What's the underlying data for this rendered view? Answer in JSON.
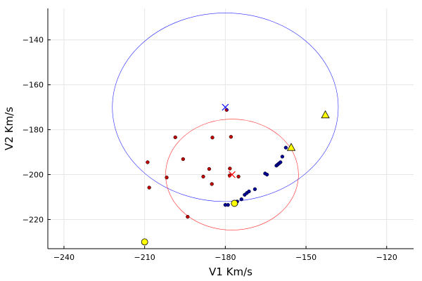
{
  "chart_data": {
    "type": "scatter",
    "xlabel": "V1 Km/s",
    "ylabel": "V2 Km/s",
    "xlim": [
      -246,
      -110
    ],
    "ylim": [
      -233,
      -126
    ],
    "x_ticks": [
      -240,
      -210,
      -180,
      -150,
      -120
    ],
    "y_ticks": [
      -140,
      -160,
      -180,
      -200,
      -220
    ],
    "x_tick_labels": [
      "−240",
      "−210",
      "−180",
      "−150",
      "−120"
    ],
    "y_tick_labels": [
      "−140",
      "−160",
      "−180",
      "−200",
      "−220"
    ],
    "grid": true,
    "legend": "none",
    "colors": {
      "red_points": "#c00000",
      "blue_points": "#000099",
      "yellow_markers": "#ffff00",
      "blue_circle": "#0000ff",
      "red_circle": "#ff0000",
      "blue_cross": "#0000ff",
      "red_cross": "#ff0000"
    },
    "series": [
      {
        "marker": "dot",
        "color": "#c00000",
        "points": [
          [
            -208.9,
            -194.5
          ],
          [
            -208.3,
            -205.8
          ],
          [
            -201.8,
            -201.3
          ],
          [
            -198.6,
            -183.4
          ],
          [
            -195.7,
            -193.1
          ],
          [
            -194.0,
            -218.8
          ],
          [
            -188.2,
            -200.9
          ],
          [
            -186.0,
            -197.5
          ],
          [
            -184.8,
            -183.5
          ],
          [
            -185.0,
            -204.2
          ],
          [
            -179.5,
            -171.2
          ],
          [
            -177.9,
            -183.2
          ],
          [
            -178.3,
            -197.3
          ],
          [
            -178.4,
            -200.4
          ],
          [
            -175.1,
            -200.9
          ]
        ]
      },
      {
        "marker": "dot",
        "color": "#000099",
        "points": [
          [
            -180.0,
            -213.5
          ],
          [
            -179.0,
            -213.5
          ],
          [
            -176.0,
            -213.0
          ],
          [
            -175.6,
            -212.0
          ],
          [
            -174.0,
            -211.0
          ],
          [
            -172.8,
            -209.0
          ],
          [
            -172.0,
            -208.2
          ],
          [
            -171.2,
            -207.5
          ],
          [
            -169.0,
            -206.5
          ],
          [
            -165.2,
            -199.5
          ],
          [
            -164.5,
            -200.0
          ],
          [
            -161.0,
            -196.0
          ],
          [
            -160.5,
            -195.5
          ],
          [
            -160.0,
            -195.0
          ],
          [
            -159.5,
            -194.5
          ],
          [
            -158.8,
            -192.0
          ],
          [
            -157.5,
            -188.0
          ]
        ]
      },
      {
        "marker": "circle",
        "color": "#ffff00",
        "points": [
          [
            -210.0,
            -230.0
          ],
          [
            -176.6,
            -212.8
          ]
        ]
      },
      {
        "marker": "triangle",
        "color": "#ffff00",
        "points": [
          [
            -155.5,
            -188.0
          ],
          [
            -142.8,
            -173.5
          ]
        ]
      },
      {
        "marker": "x",
        "color": "#0000ff",
        "points": [
          [
            -180.0,
            -170.0
          ]
        ]
      },
      {
        "marker": "x",
        "color": "#ff0000",
        "points": [
          [
            -177.5,
            -200.0
          ]
        ]
      }
    ],
    "circles": [
      {
        "center": [
          -180.0,
          -170.0
        ],
        "radius": 42.0,
        "color": "#0000ff"
      },
      {
        "center": [
          -177.5,
          -200.0
        ],
        "radius": 24.7,
        "color": "#ff0000"
      }
    ]
  }
}
